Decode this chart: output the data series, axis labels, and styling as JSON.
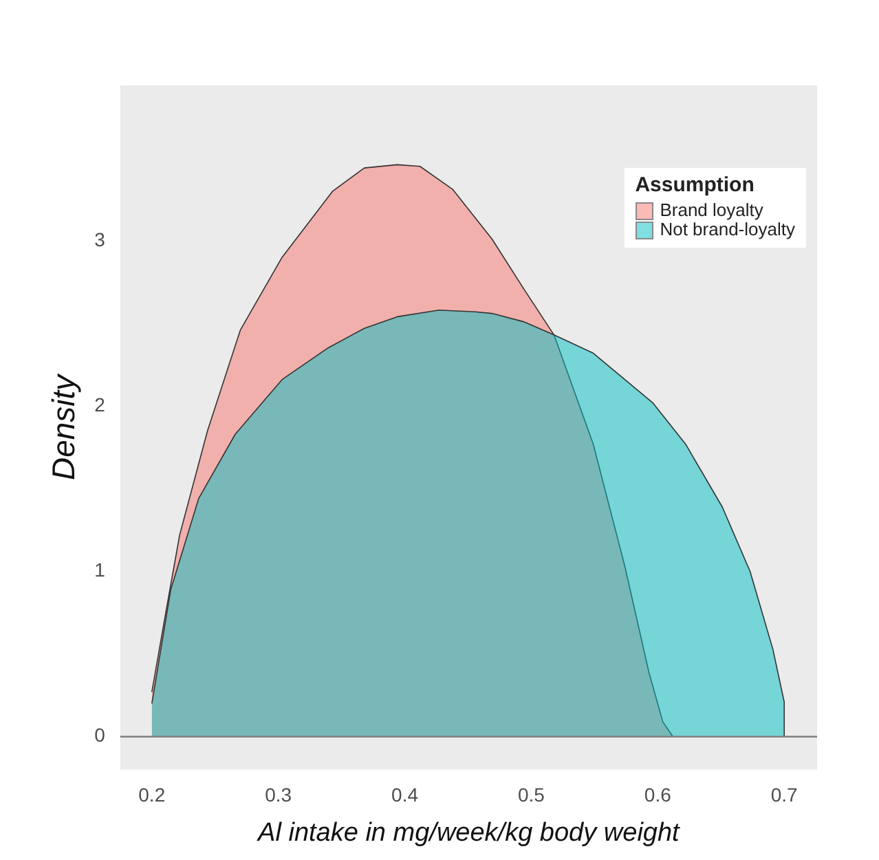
{
  "chart_data": {
    "type": "area",
    "xlabel": "Al intake in mg/week/kg body weight",
    "ylabel": "Density",
    "legend_title": "Assumption",
    "legend": "top right",
    "grid": false,
    "xlim": [
      0.175,
      0.726
    ],
    "xticks": [
      0.2,
      0.3,
      0.4,
      0.5,
      0.6,
      0.7
    ],
    "ylim": [
      -0.2,
      3.94
    ],
    "yticks": [
      0,
      1,
      2,
      3
    ],
    "ref_lines": [
      {
        "axis": "y",
        "value": 0,
        "color": "#7f7f7f"
      }
    ],
    "series": [
      {
        "name": "Brand loyalty",
        "color": "#f8766d",
        "x": [
          0.2,
          0.211,
          0.222,
          0.244,
          0.27,
          0.303,
          0.343,
          0.368,
          0.394,
          0.412,
          0.438,
          0.469,
          0.494,
          0.518,
          0.549,
          0.574,
          0.593,
          0.604,
          0.612
        ],
        "values": [
          0.27,
          0.75,
          1.22,
          1.85,
          2.46,
          2.9,
          3.3,
          3.44,
          3.46,
          3.45,
          3.31,
          3.01,
          2.71,
          2.43,
          1.77,
          1.03,
          0.39,
          0.09,
          0
        ]
      },
      {
        "name": "Not brand-loyalty",
        "color": "#00bfc4",
        "x": [
          0.2,
          0.215,
          0.237,
          0.266,
          0.303,
          0.339,
          0.368,
          0.394,
          0.427,
          0.456,
          0.469,
          0.494,
          0.518,
          0.549,
          0.596,
          0.622,
          0.651,
          0.673,
          0.691,
          0.7,
          0.7
        ],
        "values": [
          0.2,
          0.89,
          1.44,
          1.83,
          2.16,
          2.35,
          2.47,
          2.54,
          2.58,
          2.57,
          2.56,
          2.51,
          2.43,
          2.32,
          2.02,
          1.77,
          1.39,
          1.0,
          0.53,
          0.21,
          0
        ]
      }
    ]
  }
}
